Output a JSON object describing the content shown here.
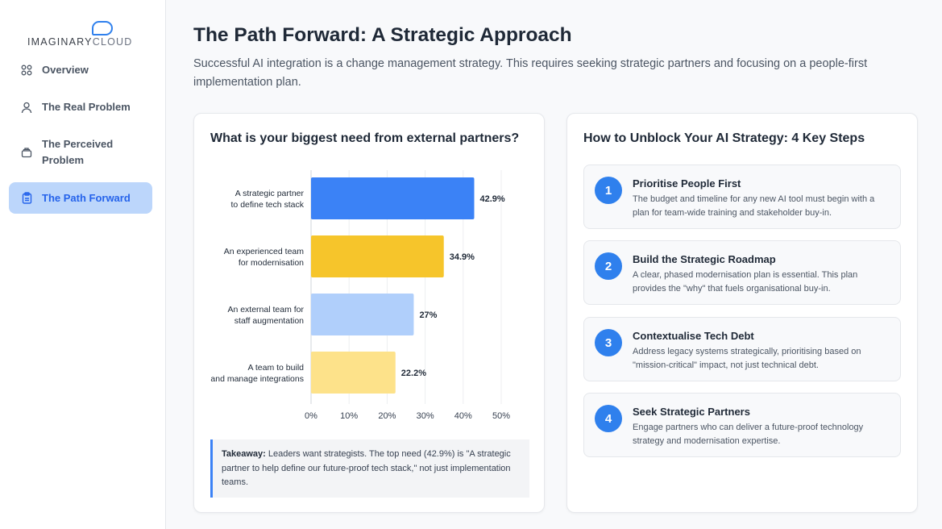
{
  "brand": {
    "logo_bold": "IMAGINARY",
    "logo_light": "CLOUD"
  },
  "sidebar": {
    "items": [
      {
        "label": "Overview",
        "icon": "grid-icon"
      },
      {
        "label": "The Real Problem",
        "icon": "user-icon"
      },
      {
        "label": "The Perceived Problem",
        "icon": "layers-icon"
      },
      {
        "label": "The Path Forward",
        "icon": "clipboard-icon",
        "active": true
      }
    ]
  },
  "page": {
    "title": "The Path Forward: A Strategic Approach",
    "subtitle": "Successful AI integration is a change management strategy. This requires seeking strategic partners and focusing on a people-first implementation plan."
  },
  "left_card": {
    "title": "What is your biggest need from external partners?",
    "takeaway_label": "Takeaway:",
    "takeaway_text": " Leaders want strategists. The top need (42.9%) is \"A strategic partner to help define our future-proof tech stack,\" not just implementation teams."
  },
  "chart_data": {
    "type": "bar",
    "orientation": "horizontal",
    "categories": [
      [
        "A strategic partner",
        "to define tech stack"
      ],
      [
        "An experienced team",
        "for modernisation"
      ],
      [
        "An external team for",
        "staff augmentation"
      ],
      [
        "A team to build",
        "and manage integrations"
      ]
    ],
    "values": [
      42.9,
      34.9,
      27,
      22.2
    ],
    "value_labels": [
      "42.9%",
      "34.9%",
      "27%",
      "22.2%"
    ],
    "colors": [
      "#3b82f6",
      "#f6c52b",
      "#b0cffb",
      "#fde28a"
    ],
    "xlim": [
      0,
      50
    ],
    "xticks": [
      0,
      10,
      20,
      30,
      40,
      50
    ],
    "xtick_labels": [
      "0%",
      "10%",
      "20%",
      "30%",
      "40%",
      "50%"
    ],
    "grid": true
  },
  "right_card": {
    "title": "How to Unblock Your AI Strategy: 4 Key Steps",
    "steps": [
      {
        "num": "1",
        "title": "Prioritise People First",
        "desc": "The budget and timeline for any new AI tool must begin with a plan for team-wide training and stakeholder buy-in."
      },
      {
        "num": "2",
        "title": "Build the Strategic Roadmap",
        "desc": "A clear, phased modernisation plan is essential. This plan provides the \"why\" that fuels organisational buy-in."
      },
      {
        "num": "3",
        "title": "Contextualise Tech Debt",
        "desc": "Address legacy systems strategically, prioritising based on \"mission-critical\" impact, not just technical debt."
      },
      {
        "num": "4",
        "title": "Seek Strategic Partners",
        "desc": "Engage partners who can deliver a future-proof technology strategy and modernisation expertise."
      }
    ]
  },
  "colors": {
    "accent": "#2f80ed",
    "active_nav_bg": "#bcd6fb"
  }
}
